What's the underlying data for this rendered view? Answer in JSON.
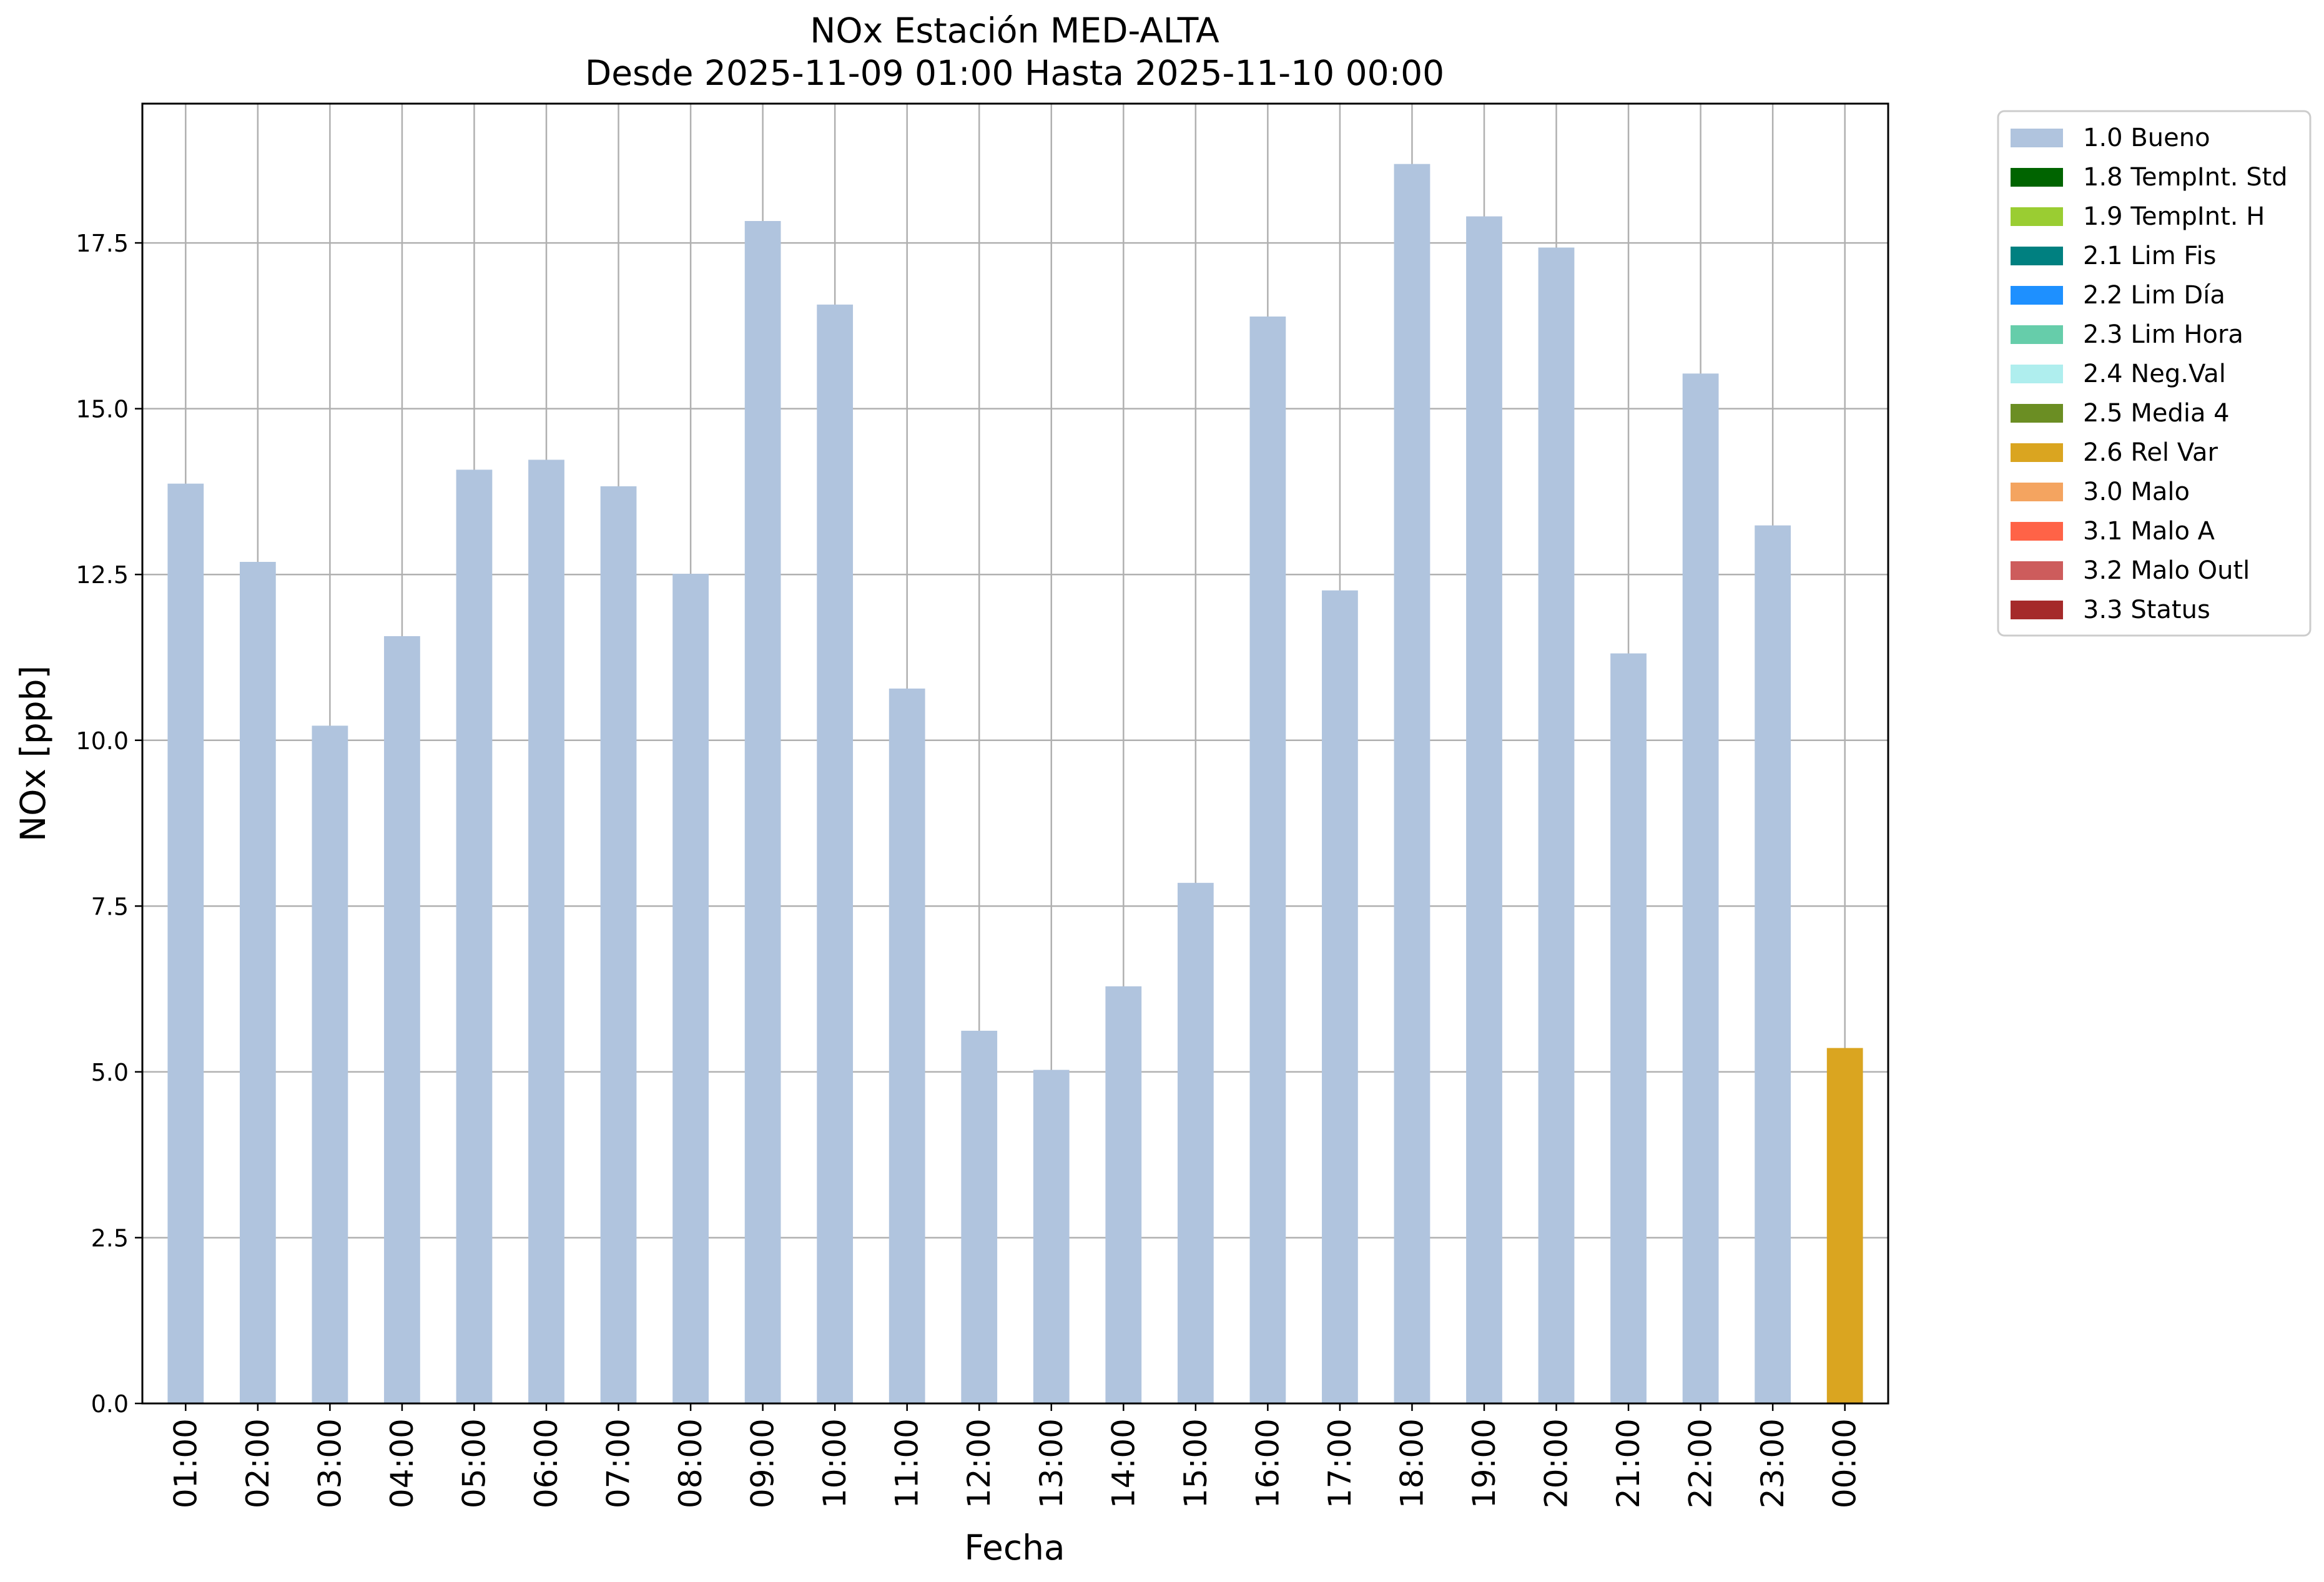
{
  "chart_data": {
    "type": "bar",
    "title": "NOx Estación MED-ALTA",
    "subtitle": "Desde 2025-11-09 01:00 Hasta 2025-11-10 00:00",
    "xlabel": "Fecha",
    "ylabel": "NOx [ppb]",
    "ylim": [
      0,
      19.6
    ],
    "yticks": [
      "0.0",
      "2.5",
      "5.0",
      "7.5",
      "10.0",
      "12.5",
      "15.0",
      "17.5"
    ],
    "grid": true,
    "legend_position": "outside-top-right",
    "categories": [
      "01:00",
      "02:00",
      "03:00",
      "04:00",
      "05:00",
      "06:00",
      "07:00",
      "08:00",
      "09:00",
      "10:00",
      "11:00",
      "12:00",
      "13:00",
      "14:00",
      "15:00",
      "16:00",
      "17:00",
      "18:00",
      "19:00",
      "20:00",
      "21:00",
      "22:00",
      "23:00",
      "00:00"
    ],
    "values": [
      13.87,
      12.69,
      10.22,
      11.57,
      14.08,
      14.23,
      13.83,
      12.51,
      17.83,
      16.57,
      10.78,
      5.62,
      5.03,
      6.29,
      7.85,
      16.39,
      12.26,
      18.69,
      17.9,
      17.43,
      11.31,
      15.53,
      13.24,
      5.36
    ],
    "flags": [
      "1.0 Bueno",
      "1.0 Bueno",
      "1.0 Bueno",
      "1.0 Bueno",
      "1.0 Bueno",
      "1.0 Bueno",
      "1.0 Bueno",
      "1.0 Bueno",
      "1.0 Bueno",
      "1.0 Bueno",
      "1.0 Bueno",
      "1.0 Bueno",
      "1.0 Bueno",
      "1.0 Bueno",
      "1.0 Bueno",
      "1.0 Bueno",
      "1.0 Bueno",
      "1.0 Bueno",
      "1.0 Bueno",
      "1.0 Bueno",
      "1.0 Bueno",
      "1.0 Bueno",
      "1.0 Bueno",
      "2.6 Rel Var"
    ],
    "legend": [
      {
        "label": "1.0 Bueno",
        "color": "#b0c4de"
      },
      {
        "label": "1.8 TempInt. Std",
        "color": "#006400"
      },
      {
        "label": "1.9 TempInt. H",
        "color": "#9acd32"
      },
      {
        "label": "2.1 Lim Fis",
        "color": "#008080"
      },
      {
        "label": "2.2 Lim Día",
        "color": "#1e90ff"
      },
      {
        "label": "2.3 Lim Hora",
        "color": "#66cdaa"
      },
      {
        "label": "2.4 Neg.Val",
        "color": "#afeeee"
      },
      {
        "label": "2.5 Media 4",
        "color": "#6b8e23"
      },
      {
        "label": "2.6 Rel Var",
        "color": "#daa520"
      },
      {
        "label": "3.0 Malo",
        "color": "#f4a460"
      },
      {
        "label": "3.1 Malo A",
        "color": "#ff6347"
      },
      {
        "label": "3.2 Malo Outl",
        "color": "#cd5c5c"
      },
      {
        "label": "3.3 Status",
        "color": "#a52a2a"
      }
    ]
  }
}
